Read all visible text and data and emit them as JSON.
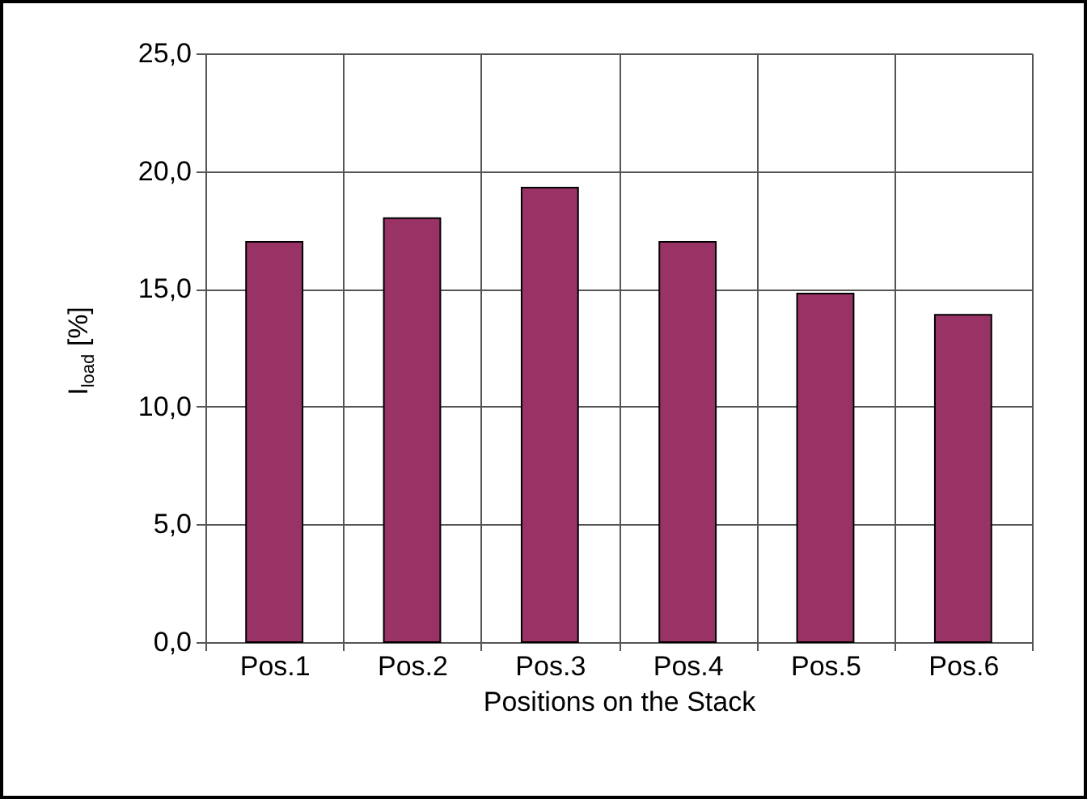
{
  "chart_data": {
    "type": "bar",
    "xlabel": "Positions on the Stack",
    "ylabel": "I$_{load}$ [%]",
    "categories": [
      "Pos.1",
      "Pos.2",
      "Pos.3",
      "Pos.4",
      "Pos.5",
      "Pos.6"
    ],
    "values": [
      17.0,
      18.0,
      19.3,
      17.0,
      14.8,
      13.9
    ],
    "color": "#993366",
    "ylim": [
      0,
      25
    ],
    "yticks": [
      {
        "value": 0,
        "label": "0,0"
      },
      {
        "value": 5,
        "label": "5,0"
      },
      {
        "value": 10,
        "label": "10,0"
      },
      {
        "value": 15,
        "label": "15,0"
      },
      {
        "value": 20,
        "label": "20,0"
      },
      {
        "value": 25,
        "label": "25,0"
      }
    ],
    "grid": true
  }
}
